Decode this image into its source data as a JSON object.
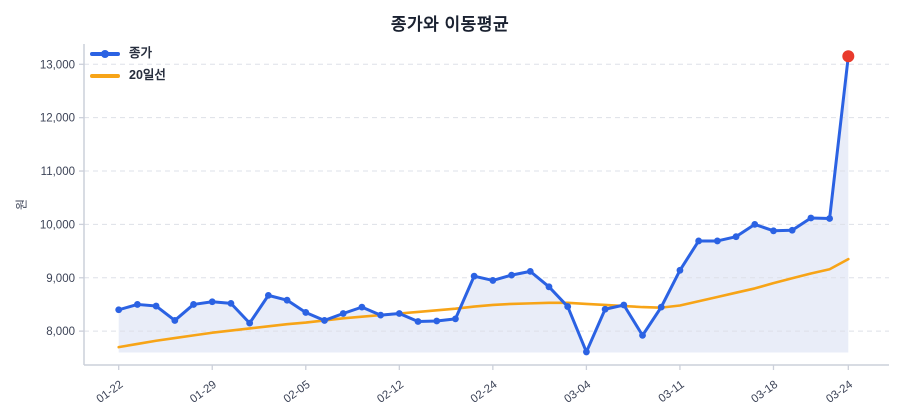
{
  "title": "종가와 이동평균",
  "y_axis": {
    "label": "원",
    "tick_labels": [
      "8,000",
      "9,000",
      "10,000",
      "11,000",
      "12,000",
      "13,000"
    ],
    "tick_values": [
      8000,
      9000,
      10000,
      11000,
      12000,
      13000
    ]
  },
  "x_axis": {
    "tick_labels": [
      "01-22",
      "01-29",
      "02-05",
      "02-12",
      "02-24",
      "03-04",
      "03-11",
      "03-18",
      "03-24"
    ],
    "tick_indices": [
      0,
      5,
      10,
      15,
      20,
      25,
      30,
      35,
      39
    ]
  },
  "legend": {
    "items": [
      {
        "label": "종가",
        "color": "#2b62e3",
        "marker": "circle"
      },
      {
        "label": "20일선",
        "color": "#f7a417",
        "marker": "none"
      }
    ]
  },
  "colors": {
    "close_line": "#2b62e3",
    "ma20_line": "#f7a417",
    "last_point": "#e93a2c",
    "area_fill": "#e9edf8",
    "gridline": "#dde0e8",
    "spine": "#ccd0da",
    "tick_text": "#3c4357",
    "title_text": "#1a2130"
  },
  "chart_data": {
    "type": "line",
    "title": "종가와 이동평균",
    "xlabel": "",
    "ylabel": "원",
    "ylim": [
      7600,
      13430
    ],
    "grid": "horizontal-dashed",
    "legend_position": "upper-left",
    "n_points": 40,
    "x_tick_labels": [
      "01-22",
      "01-29",
      "02-05",
      "02-12",
      "02-24",
      "03-04",
      "03-11",
      "03-18",
      "03-24"
    ],
    "x_tick_indices": [
      0,
      5,
      10,
      15,
      20,
      25,
      30,
      35,
      39
    ],
    "series": [
      {
        "name": "종가",
        "color": "#2b62e3",
        "marker": "circle",
        "area_fill": true,
        "values": [
          8400,
          8500,
          8470,
          8200,
          8500,
          8550,
          8520,
          8150,
          8670,
          8580,
          8350,
          8200,
          8330,
          8450,
          8300,
          8330,
          8180,
          8190,
          8230,
          9030,
          8950,
          9050,
          9120,
          8830,
          8460,
          7610,
          8410,
          8490,
          7920,
          8450,
          9140,
          9690,
          9690,
          9770,
          10000,
          9880,
          9890,
          10120,
          10110,
          13150
        ]
      },
      {
        "name": "20일선",
        "color": "#f7a417",
        "marker": "none",
        "area_fill": false,
        "values": [
          7700,
          7760,
          7820,
          7870,
          7920,
          7970,
          8010,
          8050,
          8090,
          8130,
          8160,
          8200,
          8240,
          8270,
          8300,
          8330,
          8360,
          8390,
          8420,
          8460,
          8490,
          8510,
          8520,
          8530,
          8530,
          8510,
          8490,
          8470,
          8450,
          8440,
          8480,
          8560,
          8640,
          8720,
          8800,
          8900,
          8990,
          9080,
          9160,
          9350
        ]
      }
    ],
    "annotations": {
      "last_point": {
        "index": 39,
        "value": 13150,
        "color": "#e93a2c"
      }
    }
  }
}
